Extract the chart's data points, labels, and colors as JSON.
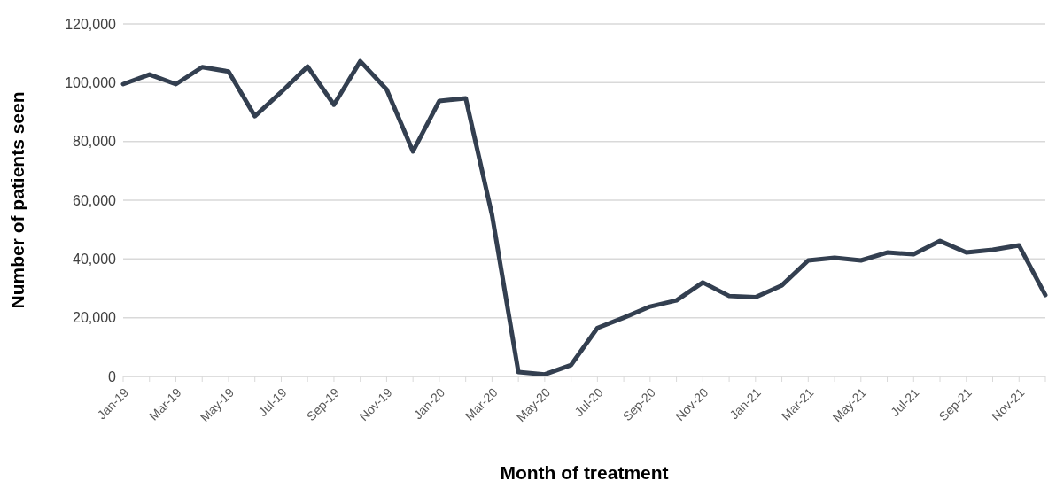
{
  "chart_data": {
    "type": "line",
    "xlabel": "Month of treatment",
    "ylabel": "Number of patients seen",
    "categories": [
      "Jan-19",
      null,
      "Mar-19",
      null,
      "May-19",
      null,
      "Jul-19",
      null,
      "Sep-19",
      null,
      "Nov-19",
      null,
      "Jan-20",
      null,
      "Mar-20",
      null,
      "May-20",
      null,
      "Jul-20",
      null,
      "Sep-20",
      null,
      "Nov-20",
      null,
      "Jan-21",
      null,
      "Mar-21",
      null,
      "May-21",
      null,
      "Jul-21",
      null,
      "Sep-21",
      null,
      "Nov-21",
      null
    ],
    "series": [
      {
        "color": "#333f50",
        "values": [
          99500,
          102800,
          99500,
          105300,
          103800,
          88600,
          96800,
          105500,
          92500,
          107300,
          97700,
          76600,
          93800,
          94700,
          55000,
          1500,
          700,
          3900,
          16500,
          20000,
          23800,
          25900,
          32000,
          27400,
          27000,
          31000,
          39500,
          40400,
          39500,
          42200,
          41600,
          46100,
          42200,
          43100,
          44600,
          27700
        ]
      }
    ],
    "ylim": [
      0,
      120000
    ],
    "yticks": [
      0,
      {
        "value": 20000,
        "label": "20,000"
      },
      {
        "value": 40000,
        "label": "40,000"
      },
      {
        "value": 60000,
        "label": "60,000"
      },
      {
        "value": 80000,
        "label": "80,000"
      },
      {
        "value": 100000,
        "label": "100,000"
      },
      {
        "value": 120000,
        "label": "120,000"
      }
    ],
    "grid": "y",
    "legend": false,
    "marker": "none",
    "line_style": "solid"
  }
}
